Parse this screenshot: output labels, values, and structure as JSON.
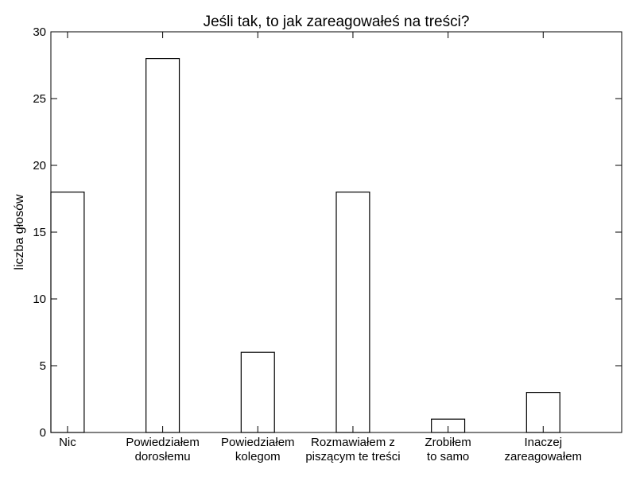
{
  "chart_data": {
    "type": "bar",
    "title": "Jeśli tak, to jak zareagowałeś na treści?",
    "xlabel": "",
    "ylabel": "liczba głosów",
    "categories": [
      [
        "Nic"
      ],
      [
        "Powiedziałem",
        "dorosłemu"
      ],
      [
        "Powiedziałem",
        "kolegom"
      ],
      [
        "Rozmawiałem z",
        "piszącym te treści"
      ],
      [
        "Zrobiłem",
        "to samo"
      ],
      [
        "Inaczej",
        "zareagowałem"
      ]
    ],
    "values": [
      18,
      28,
      6,
      18,
      1,
      3
    ],
    "ylim": [
      0,
      30
    ],
    "yticks": [
      0,
      5,
      10,
      15,
      20,
      25,
      30
    ],
    "grid": false,
    "bar_fill": "#ffffff",
    "bar_stroke": "#000000"
  }
}
